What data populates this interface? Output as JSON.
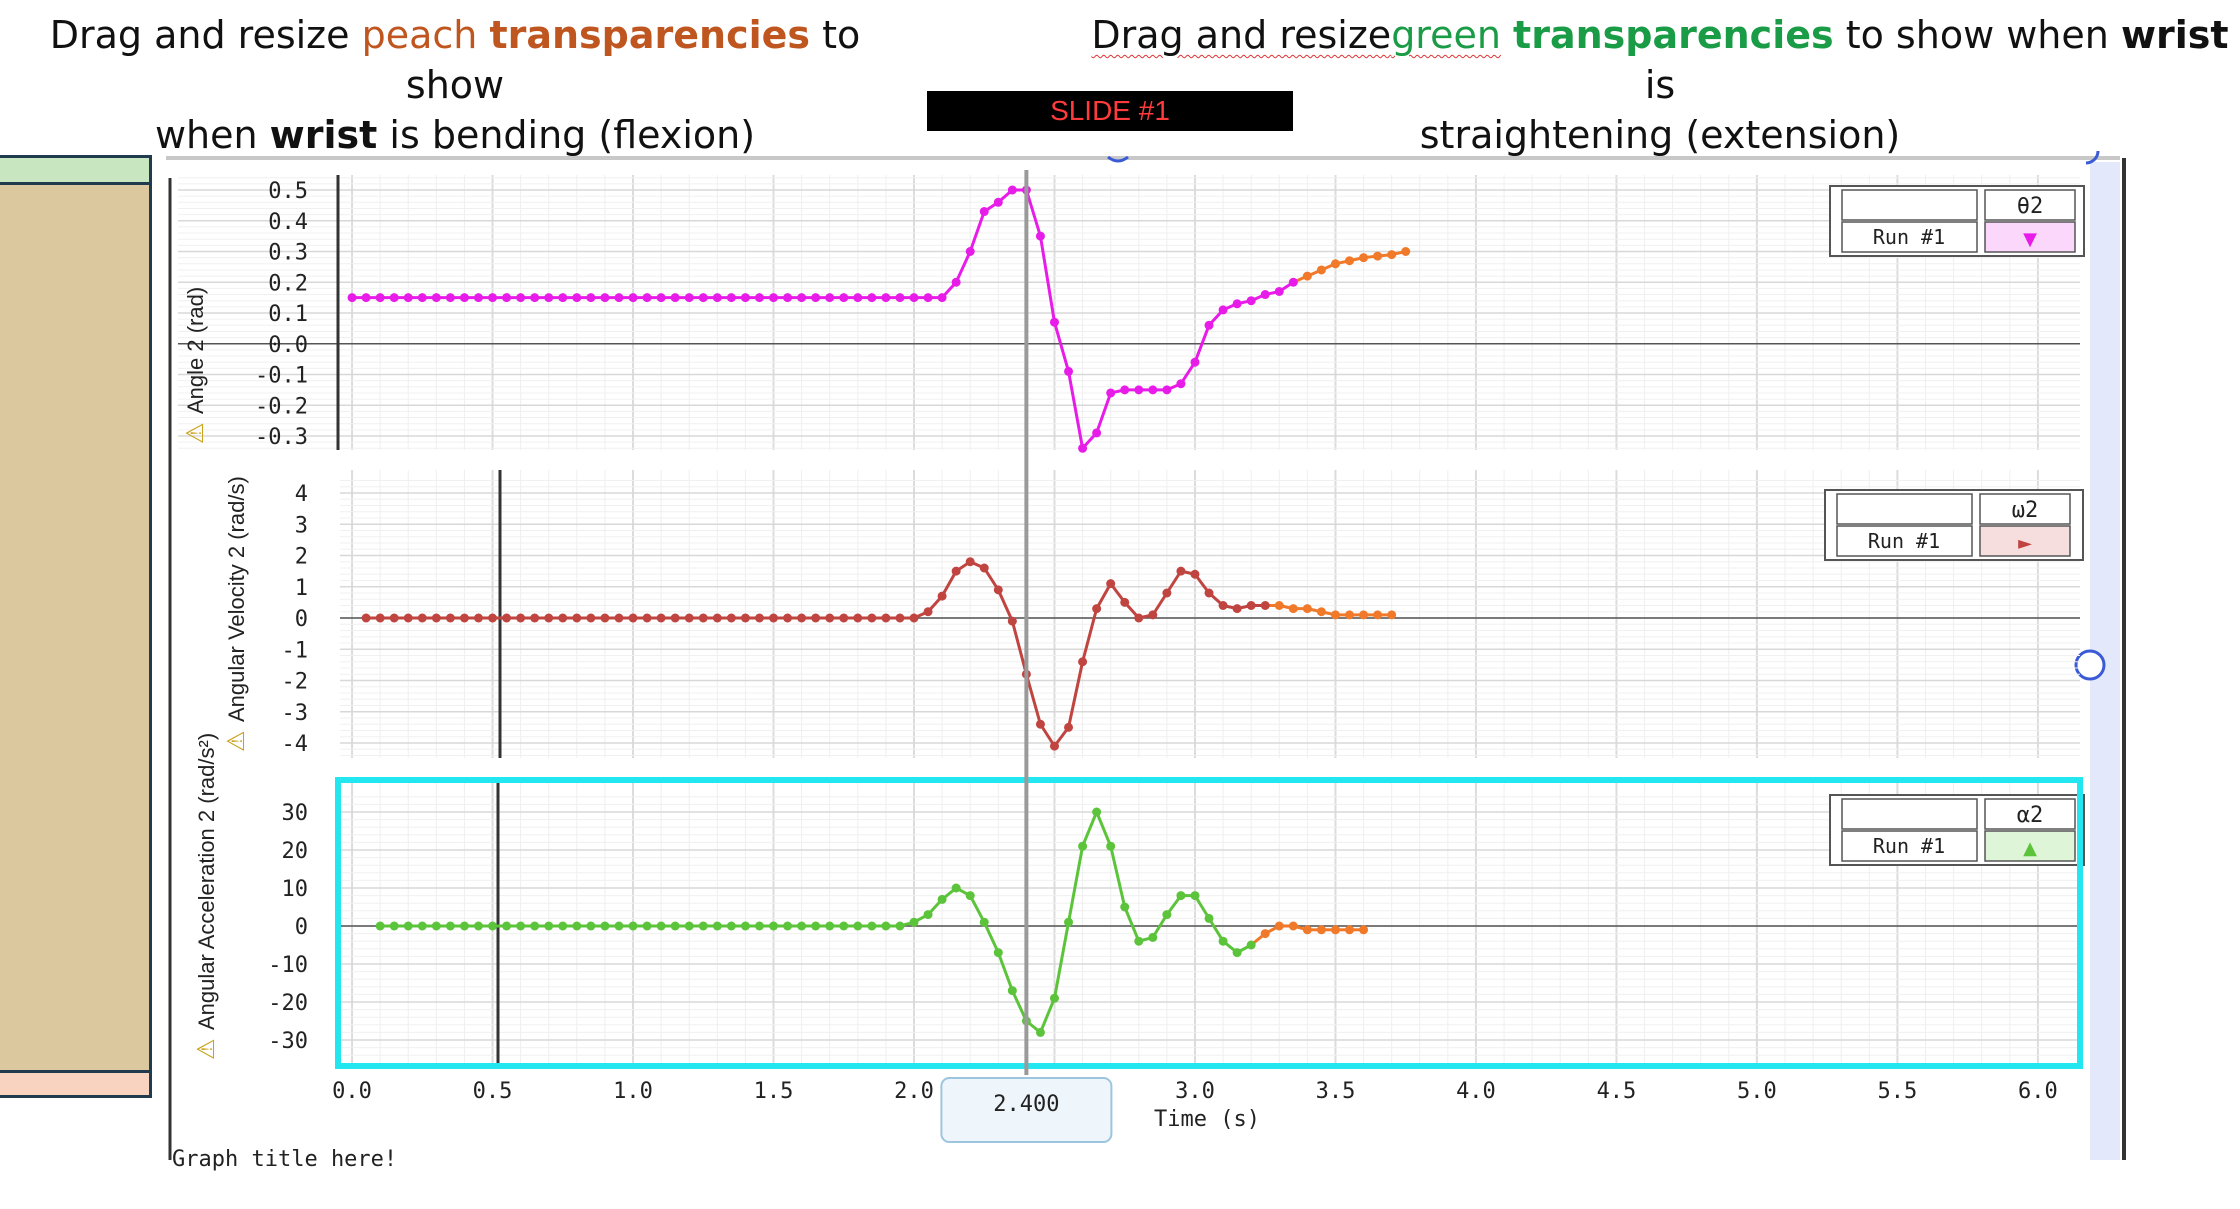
{
  "instructions": {
    "left": {
      "pre": "Drag and resize ",
      "color_word": "peach",
      "bold_word": "transparencies",
      "mid": " to show",
      "line2_pre": "when ",
      "line2_bold": "wrist",
      "line2_post": " is bending (flexion)"
    },
    "right": {
      "pre": "Drag and resize",
      "color_word": "green",
      "bold_word": "transparencies",
      "mid": " to show when ",
      "bold2": "wrist",
      "post": "  is",
      "line2": "straightening (extension)"
    }
  },
  "slide_label": "SLIDE #1",
  "colors": {
    "theta": "#e81ce8",
    "omega": "#c0443f",
    "alpha": "#5cc43b",
    "tail": "#f07a2a",
    "highlight": "#22e6f0",
    "cursor": "#9a9a9a",
    "peach_text": "#c0561f",
    "green_text": "#1a9b46"
  },
  "cursor": {
    "time": 2.4,
    "label": "2.400"
  },
  "graph_title": "Graph title here!",
  "chart_data": [
    {
      "type": "line",
      "ylabel": "Angle 2 (rad)",
      "legend": {
        "symbol": "θ2",
        "run": "Run #1",
        "marker": "▼"
      },
      "ylim": [
        -0.35,
        0.52
      ],
      "yticks": [
        "0.5",
        "0.4",
        "0.3",
        "0.2",
        "0.1",
        "0.0",
        "-0.1",
        "-0.2",
        "-0.3"
      ],
      "ytick_values": [
        0.5,
        0.4,
        0.3,
        0.2,
        0.1,
        0.0,
        -0.1,
        -0.2,
        -0.3
      ],
      "x": [
        0.0,
        0.05,
        0.1,
        0.15,
        0.2,
        0.25,
        0.3,
        0.35,
        0.4,
        0.45,
        0.5,
        0.55,
        0.6,
        0.65,
        0.7,
        0.75,
        0.8,
        0.85,
        0.9,
        0.95,
        1.0,
        1.05,
        1.1,
        1.15,
        1.2,
        1.25,
        1.3,
        1.35,
        1.4,
        1.45,
        1.5,
        1.55,
        1.6,
        1.65,
        1.7,
        1.75,
        1.8,
        1.85,
        1.9,
        1.95,
        2.0,
        2.05,
        2.1,
        2.15,
        2.2,
        2.25,
        2.3,
        2.35,
        2.4,
        2.45,
        2.5,
        2.55,
        2.6,
        2.65,
        2.7,
        2.75,
        2.8,
        2.85,
        2.9,
        2.95,
        3.0,
        3.05,
        3.1,
        3.15,
        3.2,
        3.25,
        3.3,
        3.35,
        3.4,
        3.45,
        3.5,
        3.55,
        3.6,
        3.65,
        3.7,
        3.75
      ],
      "values": [
        0.15,
        0.15,
        0.15,
        0.15,
        0.15,
        0.15,
        0.15,
        0.15,
        0.15,
        0.15,
        0.15,
        0.15,
        0.15,
        0.15,
        0.15,
        0.15,
        0.15,
        0.15,
        0.15,
        0.15,
        0.15,
        0.15,
        0.15,
        0.15,
        0.15,
        0.15,
        0.15,
        0.15,
        0.15,
        0.15,
        0.15,
        0.15,
        0.15,
        0.15,
        0.15,
        0.15,
        0.15,
        0.15,
        0.15,
        0.15,
        0.15,
        0.15,
        0.15,
        0.2,
        0.3,
        0.43,
        0.46,
        0.5,
        0.5,
        0.35,
        0.07,
        -0.09,
        -0.34,
        -0.29,
        -0.16,
        -0.15,
        -0.15,
        -0.15,
        -0.15,
        -0.13,
        -0.06,
        0.06,
        0.11,
        0.13,
        0.14,
        0.16,
        0.17,
        0.2,
        0.22,
        0.24,
        0.26,
        0.27,
        0.28,
        0.285,
        0.29,
        0.3
      ],
      "tail_from_x": 3.4
    },
    {
      "type": "line",
      "ylabel": "Angular Velocity 2 (rad/s)",
      "legend": {
        "symbol": "ω2",
        "run": "Run #1",
        "marker": "►"
      },
      "ylim": [
        -4.4,
        4.5
      ],
      "yticks": [
        "4",
        "3",
        "2",
        "1",
        "0",
        "-1",
        "-2",
        "-3",
        "-4"
      ],
      "ytick_values": [
        4,
        3,
        2,
        1,
        0,
        -1,
        -2,
        -3,
        -4
      ],
      "x": [
        0.05,
        0.1,
        0.15,
        0.2,
        0.25,
        0.3,
        0.35,
        0.4,
        0.45,
        0.5,
        0.55,
        0.6,
        0.65,
        0.7,
        0.75,
        0.8,
        0.85,
        0.9,
        0.95,
        1.0,
        1.05,
        1.1,
        1.15,
        1.2,
        1.25,
        1.3,
        1.35,
        1.4,
        1.45,
        1.5,
        1.55,
        1.6,
        1.65,
        1.7,
        1.75,
        1.8,
        1.85,
        1.9,
        1.95,
        2.0,
        2.05,
        2.1,
        2.15,
        2.2,
        2.25,
        2.3,
        2.35,
        2.4,
        2.45,
        2.5,
        2.55,
        2.6,
        2.65,
        2.7,
        2.75,
        2.8,
        2.85,
        2.9,
        2.95,
        3.0,
        3.05,
        3.1,
        3.15,
        3.2,
        3.25,
        3.3,
        3.35,
        3.4,
        3.45,
        3.5,
        3.55,
        3.6,
        3.65,
        3.7
      ],
      "values": [
        0,
        0,
        0,
        0,
        0,
        0,
        0,
        0,
        0,
        0,
        0,
        0,
        0,
        0,
        0,
        0,
        0,
        0,
        0,
        0,
        0,
        0,
        0,
        0,
        0,
        0,
        0,
        0,
        0,
        0,
        0,
        0,
        0,
        0,
        0,
        0,
        0,
        0,
        0,
        0,
        0.2,
        0.7,
        1.5,
        1.8,
        1.6,
        0.9,
        -0.1,
        -1.8,
        -3.4,
        -4.1,
        -3.5,
        -1.4,
        0.3,
        1.1,
        0.5,
        0.0,
        0.1,
        0.8,
        1.5,
        1.4,
        0.8,
        0.4,
        0.3,
        0.4,
        0.4,
        0.4,
        0.3,
        0.3,
        0.2,
        0.1,
        0.1,
        0.1,
        0.1,
        0.1
      ],
      "tail_from_x": 3.3
    },
    {
      "type": "line",
      "ylabel": "Angular Acceleration 2 (rad/s²)",
      "legend": {
        "symbol": "α2",
        "run": "Run #1",
        "marker": "▲"
      },
      "ylim": [
        -35,
        36
      ],
      "yticks": [
        "30",
        "20",
        "10",
        "0",
        "-10",
        "-20",
        "-30"
      ],
      "ytick_values": [
        30,
        20,
        10,
        0,
        -10,
        -20,
        -30
      ],
      "x": [
        0.1,
        0.15,
        0.2,
        0.25,
        0.3,
        0.35,
        0.4,
        0.45,
        0.5,
        0.55,
        0.6,
        0.65,
        0.7,
        0.75,
        0.8,
        0.85,
        0.9,
        0.95,
        1.0,
        1.05,
        1.1,
        1.15,
        1.2,
        1.25,
        1.3,
        1.35,
        1.4,
        1.45,
        1.5,
        1.55,
        1.6,
        1.65,
        1.7,
        1.75,
        1.8,
        1.85,
        1.9,
        1.95,
        2.0,
        2.05,
        2.1,
        2.15,
        2.2,
        2.25,
        2.3,
        2.35,
        2.4,
        2.45,
        2.5,
        2.55,
        2.6,
        2.65,
        2.7,
        2.75,
        2.8,
        2.85,
        2.9,
        2.95,
        3.0,
        3.05,
        3.1,
        3.15,
        3.2,
        3.25,
        3.3,
        3.35,
        3.4,
        3.45,
        3.5,
        3.55,
        3.6
      ],
      "values": [
        0,
        0,
        0,
        0,
        0,
        0,
        0,
        0,
        0,
        0,
        0,
        0,
        0,
        0,
        0,
        0,
        0,
        0,
        0,
        0,
        0,
        0,
        0,
        0,
        0,
        0,
        0,
        0,
        0,
        0,
        0,
        0,
        0,
        0,
        0,
        0,
        0,
        0,
        1,
        3,
        7,
        10,
        8,
        1,
        -7,
        -17,
        -25,
        -28,
        -19,
        1,
        21,
        30,
        21,
        5,
        -4,
        -3,
        3,
        8,
        8,
        2,
        -4,
        -7,
        -5,
        -2,
        0,
        0,
        -1,
        -1,
        -1,
        -1,
        -1
      ],
      "tail_from_x": 3.25
    }
  ],
  "x_axis": {
    "label": "Time (s)",
    "ticks": [
      "0.0",
      "0.5",
      "1.0",
      "1.5",
      "2.0",
      "3.0",
      "3.5",
      "4.0",
      "4.5",
      "5.0",
      "5.5",
      "6.0"
    ],
    "tick_values": [
      0.0,
      0.5,
      1.0,
      1.5,
      2.0,
      3.0,
      3.5,
      4.0,
      4.5,
      5.0,
      5.5,
      6.0
    ],
    "xlim": [
      -0.05,
      6.1
    ]
  }
}
